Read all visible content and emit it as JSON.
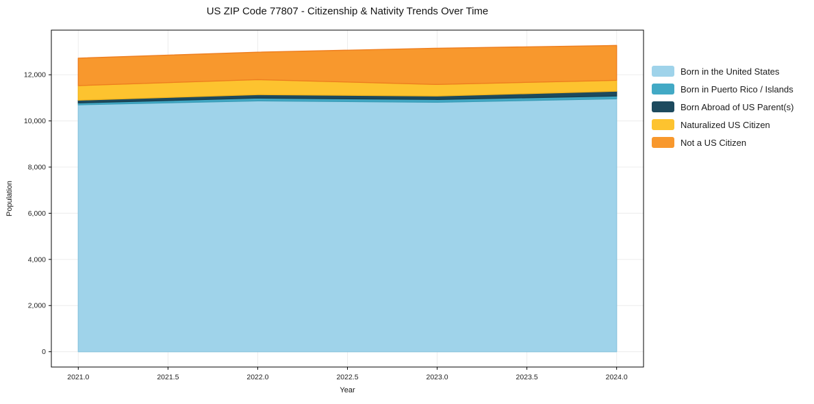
{
  "title": "US ZIP Code 77807 - Citizenship & Nativity Trends Over Time",
  "chart_data": {
    "type": "area",
    "stacked": true,
    "title": "US ZIP Code 77807 - Citizenship & Nativity Trends Over Time",
    "xlabel": "Year",
    "ylabel": "Population",
    "x": [
      2021,
      2022,
      2023,
      2024
    ],
    "series": [
      {
        "name": "Born in the United States",
        "color": "#9fd3ea",
        "edge": "#8ec7e0",
        "values": [
          10700,
          10870,
          10810,
          10960
        ]
      },
      {
        "name": "Born in Puerto Rico / Islands",
        "color": "#42a9c5",
        "edge": "#3a9db8",
        "values": [
          80,
          120,
          120,
          120
        ]
      },
      {
        "name": "Born Abroad of US Parent(s)",
        "color": "#1d4a5e",
        "edge": "#183f50",
        "values": [
          120,
          150,
          150,
          210
        ]
      },
      {
        "name": "Naturalized US Citizen",
        "color": "#fdc32f",
        "edge": "#f4b51e",
        "values": [
          630,
          650,
          500,
          470
        ]
      },
      {
        "name": "Not a US Citizen",
        "color": "#f8982d",
        "edge": "#ee7e1f",
        "values": [
          1190,
          1190,
          1570,
          1510
        ]
      }
    ],
    "totals": [
      12720,
      12980,
      13150,
      13270
    ],
    "xticks": [
      2021.0,
      2021.5,
      2022.0,
      2022.5,
      2023.0,
      2023.5,
      2024.0
    ],
    "xtick_labels": [
      "2021.0",
      "2021.5",
      "2022.0",
      "2022.5",
      "2023.0",
      "2023.5",
      "2024.0"
    ],
    "yticks": [
      0,
      2000,
      4000,
      6000,
      8000,
      10000,
      12000
    ],
    "ytick_labels": [
      "0",
      "2,000",
      "4,000",
      "6,000",
      "8,000",
      "10,000",
      "12,000"
    ],
    "xlim": [
      2020.85,
      2024.15
    ],
    "ylim": [
      -663,
      13934
    ],
    "grid": true,
    "grid_color": "#ececec",
    "spine_color": "#000000",
    "legend_position": "right-outside"
  }
}
